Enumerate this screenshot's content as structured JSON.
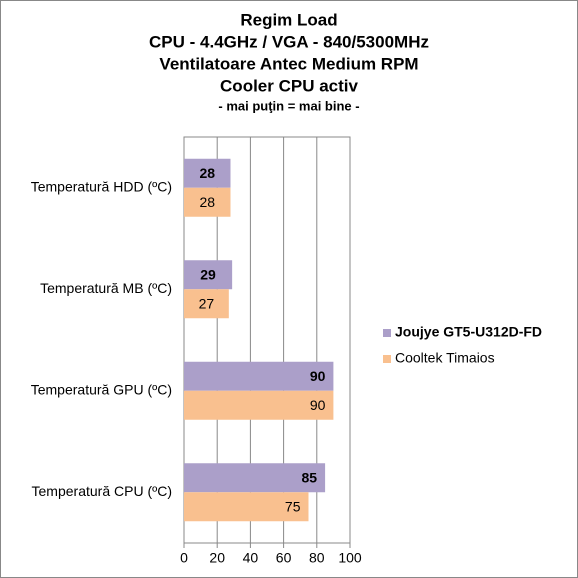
{
  "chart_data": {
    "type": "hbar",
    "title": [
      "Regim Load",
      "CPU - 4.4GHz / VGA - 840/5300MHz",
      "Ventilatoare Antec Medium RPM",
      "Cooler CPU activ"
    ],
    "subtitle": "- mai puţin = mai bine -",
    "categories": [
      "Temperatură  HDD (ºC)",
      "Temperatură  MB (ºC)",
      "Temperatură  GPU (ºC)",
      "Temperatură  CPU (ºC)"
    ],
    "series": [
      {
        "name": "Joujye GT5-U312D-FD",
        "color": "#ab9fc9",
        "values": [
          28,
          29,
          90,
          85
        ]
      },
      {
        "name": "Cooltek Timaios",
        "color": "#f9c08f",
        "values": [
          28,
          27,
          90,
          75
        ]
      }
    ],
    "xlim": [
      0,
      100
    ],
    "xticks": [
      0,
      20,
      40,
      60,
      80,
      100
    ],
    "grid": true,
    "legend": "right"
  }
}
